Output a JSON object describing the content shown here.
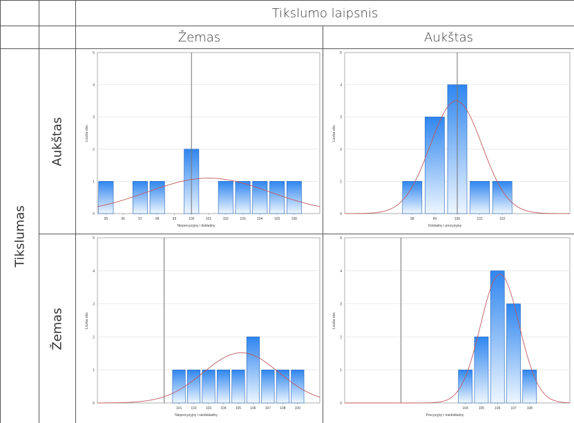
{
  "table": {
    "top_header": "Tikslumo laipsnis",
    "col_low": "Žemas",
    "col_high": "Aukštas",
    "row_axis": "Tikslumas",
    "row_high": "Aukštas",
    "row_low": "Žemas"
  },
  "colors": {
    "bar_top": "#2f86ef",
    "bar_bottom": "#eef6ff",
    "bar_stroke": "#1f5fb8",
    "curve": "#c0565e",
    "reference_line": "#7a7a7a",
    "grid": "#e6e6e6"
  },
  "chart_data": [
    {
      "id": "top-left",
      "type": "bar",
      "xlabel": "Nieprecyzyjny i dokładny",
      "ylabel": "Liczba obs.",
      "ylim": [
        0,
        5
      ],
      "yticks": [
        0,
        1,
        2,
        3,
        4,
        5
      ],
      "xlim": [
        94.5,
        107.5
      ],
      "xticks": [
        95,
        96,
        97,
        98,
        99,
        100,
        101,
        102,
        103,
        104,
        105,
        106
      ],
      "bars": [
        {
          "x": 95,
          "y": 1
        },
        {
          "x": 97,
          "y": 1
        },
        {
          "x": 98,
          "y": 1
        },
        {
          "x": 100,
          "y": 2
        },
        {
          "x": 102,
          "y": 1
        },
        {
          "x": 103,
          "y": 1
        },
        {
          "x": 104,
          "y": 1
        },
        {
          "x": 105,
          "y": 1
        },
        {
          "x": 106,
          "y": 1
        }
      ],
      "normal_curve": {
        "mean": 101.0,
        "sd": 3.6,
        "peak": 1.1
      },
      "reference_x": 100
    },
    {
      "id": "top-right",
      "type": "bar",
      "xlabel": "Dokładny i precyzyjny",
      "ylabel": "Liczba obs.",
      "ylim": [
        0,
        5
      ],
      "yticks": [
        0,
        1,
        2,
        3,
        4,
        5
      ],
      "xlim": [
        95,
        105
      ],
      "xticks": [
        98,
        99,
        100,
        101,
        102
      ],
      "bars": [
        {
          "x": 98,
          "y": 1
        },
        {
          "x": 99,
          "y": 3
        },
        {
          "x": 100,
          "y": 4
        },
        {
          "x": 101,
          "y": 1
        },
        {
          "x": 102,
          "y": 1
        }
      ],
      "normal_curve": {
        "mean": 99.95,
        "sd": 1.15,
        "peak": 3.5
      },
      "reference_x": 100
    },
    {
      "id": "bottom-left",
      "type": "bar",
      "xlabel": "Nieprecyzyjny i niedokładny",
      "ylabel": "Liczba obs.",
      "ylim": [
        0,
        5
      ],
      "yticks": [
        0,
        1,
        2,
        3,
        4,
        5
      ],
      "xlim": [
        95.5,
        110.5
      ],
      "xticks": [
        101,
        102,
        103,
        104,
        105,
        106,
        107,
        108,
        109
      ],
      "bars": [
        {
          "x": 101,
          "y": 1
        },
        {
          "x": 102,
          "y": 1
        },
        {
          "x": 103,
          "y": 1
        },
        {
          "x": 104,
          "y": 1
        },
        {
          "x": 105,
          "y": 1
        },
        {
          "x": 106,
          "y": 2
        },
        {
          "x": 107,
          "y": 1
        },
        {
          "x": 108,
          "y": 1
        },
        {
          "x": 109,
          "y": 1
        }
      ],
      "normal_curve": {
        "mean": 105.2,
        "sd": 2.55,
        "peak": 1.52
      },
      "reference_x": 100
    },
    {
      "id": "bottom-right",
      "type": "bar",
      "xlabel": "Precyzyjny i niedokładny",
      "ylabel": "Liczba obs.",
      "ylim": [
        0,
        5
      ],
      "yticks": [
        0,
        1,
        2,
        3,
        4,
        5
      ],
      "xlim": [
        96.5,
        110.5
      ],
      "xticks": [
        104,
        105,
        106,
        107,
        108
      ],
      "bars": [
        {
          "x": 104,
          "y": 1
        },
        {
          "x": 105,
          "y": 2
        },
        {
          "x": 106,
          "y": 4
        },
        {
          "x": 107,
          "y": 3
        },
        {
          "x": 108,
          "y": 1
        }
      ],
      "normal_curve": {
        "mean": 106.15,
        "sd": 1.2,
        "peak": 3.9
      },
      "reference_x": 100
    }
  ]
}
